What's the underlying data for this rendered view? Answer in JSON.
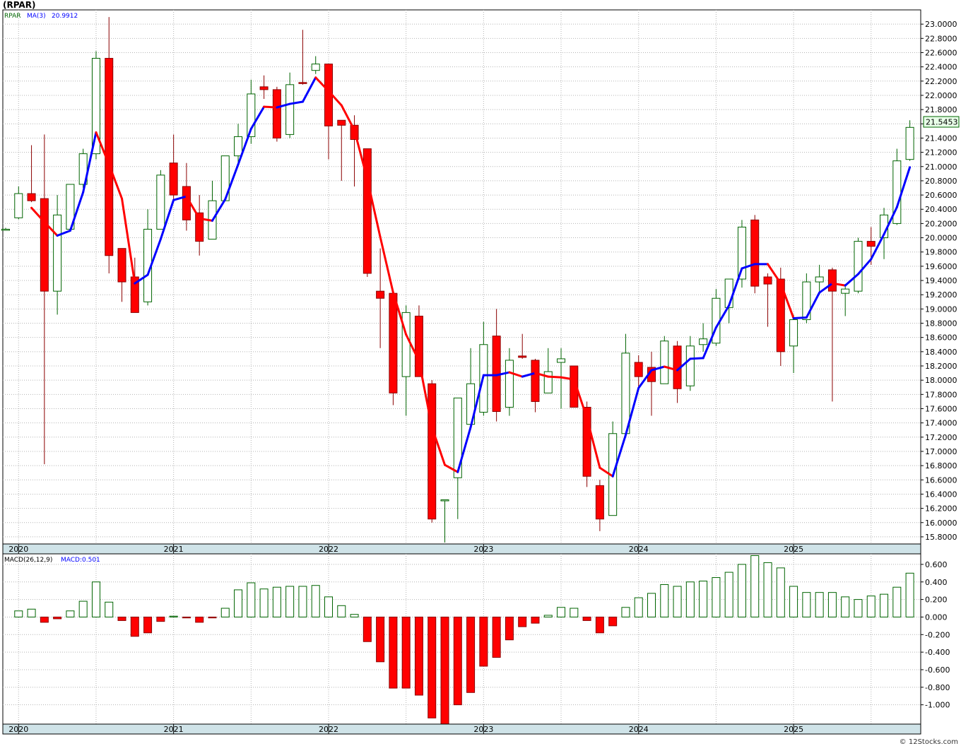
{
  "header": {
    "title": "(RPAR)"
  },
  "footer": {
    "credit": "© 12Stocks.com"
  },
  "colors": {
    "up": "#006400",
    "down": "#ff0000",
    "ma_up": "#0000ff",
    "ma_down": "#ff0000",
    "grid": "#b4b4b4",
    "axis_band": "#cfe3e8"
  },
  "chart_data": [
    {
      "type": "candlestick",
      "legend": {
        "symbol": "RPAR",
        "ma_label": "MA(3)",
        "ma_value": "20.9912"
      },
      "last_price_label": "21.5453",
      "ylim": [
        15.7,
        23.2
      ],
      "yticks": [
        "23.0000",
        "22.8000",
        "22.6000",
        "22.4000",
        "22.2000",
        "22.0000",
        "21.8000",
        "21.6000",
        "21.4000",
        "21.2000",
        "21.0000",
        "20.8000",
        "20.6000",
        "20.4000",
        "20.2000",
        "20.0000",
        "19.8000",
        "19.6000",
        "19.4000",
        "19.2000",
        "19.0000",
        "18.8000",
        "18.6000",
        "18.4000",
        "18.2000",
        "18.0000",
        "17.8000",
        "17.6000",
        "17.4000",
        "17.2000",
        "17.0000",
        "16.8000",
        "16.6000",
        "16.4000",
        "16.2000",
        "16.0000",
        "15.8000"
      ],
      "year_labels": [
        "2020",
        "2021",
        "2022",
        "2023",
        "2024",
        "2025"
      ],
      "year_start_index": [
        1,
        13,
        25,
        37,
        49,
        61
      ],
      "candles": [
        [
          20.12,
          20.14,
          20.12,
          20.12
        ],
        [
          20.28,
          20.72,
          20.26,
          20.62
        ],
        [
          20.62,
          21.3,
          20.5,
          20.52
        ],
        [
          20.55,
          21.45,
          16.82,
          19.25
        ],
        [
          19.25,
          20.6,
          18.92,
          20.32
        ],
        [
          20.12,
          20.7,
          20.1,
          20.75
        ],
        [
          20.75,
          21.25,
          20.7,
          21.18
        ],
        [
          21.18,
          22.62,
          21.1,
          22.52
        ],
        [
          22.52,
          23.1,
          19.5,
          19.75
        ],
        [
          19.85,
          19.85,
          19.1,
          19.38
        ],
        [
          19.45,
          19.72,
          18.95,
          18.95
        ],
        [
          19.1,
          20.4,
          19.05,
          20.12
        ],
        [
          20.12,
          20.95,
          20.12,
          20.88
        ],
        [
          21.05,
          21.45,
          20.5,
          20.6
        ],
        [
          20.72,
          21.05,
          20.1,
          20.25
        ],
        [
          20.35,
          20.6,
          19.75,
          19.95
        ],
        [
          19.98,
          20.8,
          19.98,
          20.52
        ],
        [
          20.52,
          21.15,
          20.52,
          21.15
        ],
        [
          21.15,
          21.6,
          21.05,
          21.42
        ],
        [
          21.42,
          22.22,
          21.32,
          22.02
        ],
        [
          22.12,
          22.28,
          21.95,
          22.08
        ],
        [
          22.08,
          22.12,
          21.35,
          21.4
        ],
        [
          21.45,
          22.32,
          21.4,
          22.15
        ],
        [
          22.18,
          22.92,
          22.15,
          22.17
        ],
        [
          22.35,
          22.55,
          22.3,
          22.44
        ],
        [
          22.44,
          22.44,
          21.1,
          21.57
        ],
        [
          21.65,
          21.65,
          20.8,
          21.58
        ],
        [
          21.58,
          21.72,
          20.72,
          21.38
        ],
        [
          21.25,
          21.25,
          19.45,
          19.5
        ],
        [
          19.25,
          19.85,
          18.45,
          19.15
        ],
        [
          19.22,
          19.22,
          17.65,
          17.82
        ],
        [
          18.05,
          19.05,
          17.5,
          18.95
        ],
        [
          18.9,
          19.05,
          18.05,
          18.05
        ],
        [
          17.95,
          18.0,
          16.0,
          16.05
        ],
        [
          16.32,
          16.32,
          15.72,
          16.32
        ],
        [
          16.63,
          17.75,
          16.05,
          17.75
        ],
        [
          17.38,
          18.45,
          17.3,
          17.95
        ],
        [
          17.55,
          18.82,
          17.5,
          18.5
        ],
        [
          18.62,
          19.0,
          17.42,
          17.56
        ],
        [
          17.62,
          18.45,
          17.5,
          18.28
        ],
        [
          18.34,
          18.65,
          18.3,
          18.32
        ],
        [
          18.28,
          18.3,
          17.55,
          17.7
        ],
        [
          17.82,
          18.45,
          17.82,
          18.12
        ],
        [
          18.25,
          18.45,
          17.6,
          18.3
        ],
        [
          18.2,
          18.2,
          17.62,
          17.62
        ],
        [
          17.62,
          17.7,
          16.5,
          16.65
        ],
        [
          16.52,
          16.6,
          15.88,
          16.05
        ],
        [
          16.1,
          17.42,
          16.1,
          17.25
        ],
        [
          17.25,
          18.65,
          17.25,
          18.38
        ],
        [
          18.25,
          18.35,
          17.9,
          18.05
        ],
        [
          18.18,
          18.4,
          17.5,
          17.98
        ],
        [
          17.95,
          18.62,
          17.95,
          18.55
        ],
        [
          18.48,
          18.55,
          17.68,
          17.88
        ],
        [
          17.92,
          18.62,
          17.85,
          18.48
        ],
        [
          18.5,
          18.8,
          18.4,
          18.58
        ],
        [
          18.52,
          19.28,
          18.48,
          19.15
        ],
        [
          19.02,
          19.4,
          18.8,
          19.42
        ],
        [
          19.42,
          20.25,
          19.3,
          20.15
        ],
        [
          20.25,
          20.32,
          19.22,
          19.32
        ],
        [
          19.45,
          19.5,
          18.75,
          19.35
        ],
        [
          19.42,
          19.58,
          18.2,
          18.4
        ],
        [
          18.48,
          18.92,
          18.1,
          18.85
        ],
        [
          18.85,
          19.5,
          18.8,
          19.38
        ],
        [
          19.38,
          19.62,
          19.2,
          19.45
        ],
        [
          19.55,
          19.58,
          17.7,
          19.25
        ],
        [
          19.22,
          19.35,
          18.9,
          19.28
        ],
        [
          19.25,
          20.0,
          19.22,
          19.95
        ],
        [
          19.95,
          20.15,
          19.62,
          19.88
        ],
        [
          20.0,
          20.42,
          19.7,
          20.32
        ],
        [
          20.2,
          21.25,
          20.18,
          21.08
        ],
        [
          21.1,
          21.65,
          21.08,
          21.55
        ]
      ],
      "ma3": [
        null,
        null,
        20.42,
        20.22,
        20.03,
        20.1,
        20.64,
        21.48,
        21.03,
        20.55,
        19.36,
        19.48,
        19.98,
        20.53,
        20.58,
        20.27,
        20.24,
        20.54,
        21.03,
        21.53,
        21.84,
        21.83,
        21.88,
        21.91,
        22.25,
        22.06,
        21.86,
        21.51,
        20.82,
        20.01,
        19.23,
        18.64,
        18.27,
        17.34,
        16.81,
        16.71,
        17.34,
        18.07,
        18.07,
        18.11,
        18.05,
        18.1,
        18.05,
        18.04,
        18.01,
        17.47,
        16.77,
        16.65,
        17.23,
        17.89,
        18.14,
        18.19,
        18.14,
        18.3,
        18.31,
        18.74,
        19.05,
        19.57,
        19.63,
        19.63,
        19.36,
        18.87,
        18.88,
        19.23,
        19.36,
        19.33,
        19.49,
        19.7,
        20.05,
        20.43,
        20.99
      ]
    },
    {
      "type": "bar",
      "legend": {
        "label": "MACD(26,12,9)",
        "value_label": "MACD:0.501"
      },
      "ylim": [
        -1.22,
        0.72
      ],
      "yticks": [
        "0.600",
        "0.400",
        "0.200",
        "0.000",
        "-0.200",
        "-0.400",
        "-0.600",
        "-0.800",
        "-1.000"
      ],
      "year_labels": [
        "2020",
        "2021",
        "2022",
        "2023",
        "2024",
        "2025"
      ],
      "values": [
        null,
        0.07,
        0.09,
        -0.06,
        -0.02,
        0.07,
        0.18,
        0.4,
        0.17,
        -0.04,
        -0.22,
        -0.18,
        -0.05,
        0.01,
        -0.01,
        -0.06,
        -0.01,
        0.1,
        0.31,
        0.39,
        0.32,
        0.34,
        0.35,
        0.35,
        0.36,
        0.23,
        0.13,
        0.03,
        -0.28,
        -0.51,
        -0.81,
        -0.81,
        -0.89,
        -1.15,
        -1.22,
        -1.0,
        -0.86,
        -0.56,
        -0.46,
        -0.26,
        -0.11,
        -0.07,
        0.02,
        0.11,
        0.1,
        -0.04,
        -0.18,
        -0.1,
        0.11,
        0.22,
        0.27,
        0.37,
        0.35,
        0.4,
        0.41,
        0.45,
        0.51,
        0.6,
        0.7,
        0.62,
        0.56,
        0.35,
        0.28,
        0.28,
        0.28,
        0.23,
        0.2,
        0.24,
        0.26,
        0.34,
        0.5
      ]
    }
  ]
}
